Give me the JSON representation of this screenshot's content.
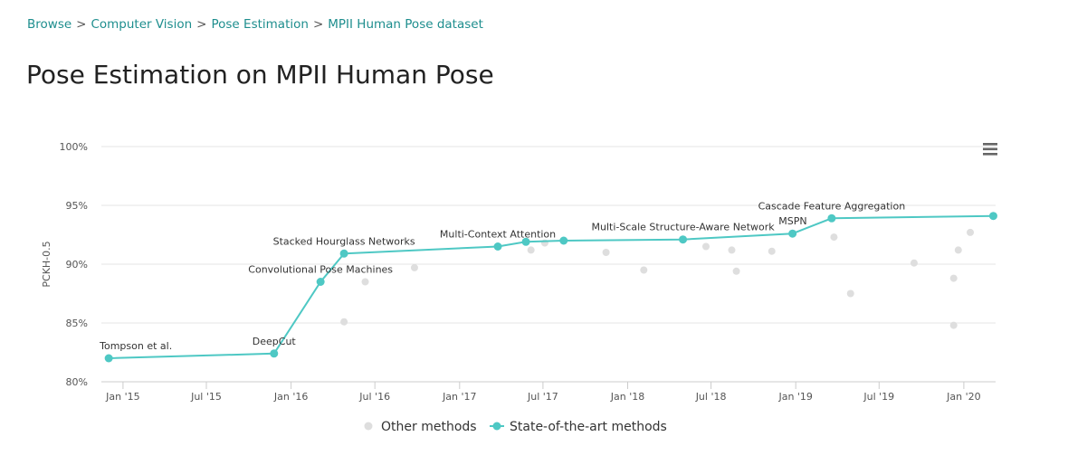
{
  "breadcrumb": {
    "items": [
      "Browse",
      "Computer Vision",
      "Pose Estimation",
      "MPII Human Pose dataset"
    ],
    "separator": ">"
  },
  "page_title": "Pose Estimation on MPII Human Pose",
  "colors": {
    "sota": "#4ec8c4",
    "other": "#dedede",
    "link": "#1e8e8e",
    "grid": "#e6e6e6"
  },
  "menu_icon": "hamburger-menu-icon",
  "chart_data": {
    "type": "scatter",
    "ylabel": "PCKH-0.5",
    "xlabel": "",
    "ylim": [
      80,
      100
    ],
    "xlim": [
      "2014-11-15",
      "2020-03-10"
    ],
    "y_ticks": [
      "80%",
      "85%",
      "90%",
      "95%",
      "100%"
    ],
    "y_tick_values": [
      80,
      85,
      90,
      95,
      100
    ],
    "x_ticks": [
      "Jan '15",
      "Jul '15",
      "Jan '16",
      "Jul '16",
      "Jan '17",
      "Jul '17",
      "Jan '18",
      "Jul '18",
      "Jan '19",
      "Jul '19",
      "Jan '20"
    ],
    "x_tick_dates": [
      "2015-01-01",
      "2015-07-01",
      "2016-01-01",
      "2016-07-01",
      "2017-01-01",
      "2017-07-01",
      "2018-01-01",
      "2018-07-01",
      "2019-01-01",
      "2019-07-01",
      "2020-01-01"
    ],
    "legend_position": "bottom-center",
    "series": [
      {
        "name": "Other methods",
        "points": [
          {
            "x": "2016-04-25",
            "y": 85.1
          },
          {
            "x": "2016-06-10",
            "y": 88.5
          },
          {
            "x": "2016-09-25",
            "y": 89.7
          },
          {
            "x": "2017-06-05",
            "y": 91.2
          },
          {
            "x": "2017-07-05",
            "y": 91.8
          },
          {
            "x": "2017-11-15",
            "y": 91.0
          },
          {
            "x": "2018-02-05",
            "y": 89.5
          },
          {
            "x": "2018-06-20",
            "y": 91.5
          },
          {
            "x": "2018-08-15",
            "y": 91.2
          },
          {
            "x": "2018-08-25",
            "y": 89.4
          },
          {
            "x": "2018-11-10",
            "y": 91.1
          },
          {
            "x": "2019-03-25",
            "y": 92.3
          },
          {
            "x": "2019-04-30",
            "y": 87.5
          },
          {
            "x": "2019-09-15",
            "y": 90.1
          },
          {
            "x": "2019-12-10",
            "y": 84.8
          },
          {
            "x": "2019-12-10",
            "y": 88.8
          },
          {
            "x": "2019-12-20",
            "y": 91.2
          },
          {
            "x": "2020-01-15",
            "y": 92.7
          }
        ]
      },
      {
        "name": "State-of-the-art methods",
        "points": [
          {
            "x": "2014-12-01",
            "y": 82.0,
            "label": "Tompson et al."
          },
          {
            "x": "2015-11-25",
            "y": 82.4,
            "label": "DeepCut"
          },
          {
            "x": "2016-03-05",
            "y": 88.5,
            "label": "Convolutional Pose Machines"
          },
          {
            "x": "2016-04-25",
            "y": 90.9,
            "label": "Stacked Hourglass Networks"
          },
          {
            "x": "2017-03-25",
            "y": 91.5,
            "label": "Multi-Context Attention"
          },
          {
            "x": "2017-05-25",
            "y": 91.9,
            "label": ""
          },
          {
            "x": "2017-08-15",
            "y": 92.0,
            "label": ""
          },
          {
            "x": "2018-05-01",
            "y": 92.1,
            "label": "Multi-Scale Structure-Aware Network"
          },
          {
            "x": "2018-12-25",
            "y": 92.6,
            "label": "MSPN"
          },
          {
            "x": "2019-03-20",
            "y": 93.9,
            "label": "Cascade Feature Aggregation"
          },
          {
            "x": "2020-03-05",
            "y": 94.1,
            "label": ""
          }
        ]
      }
    ]
  }
}
